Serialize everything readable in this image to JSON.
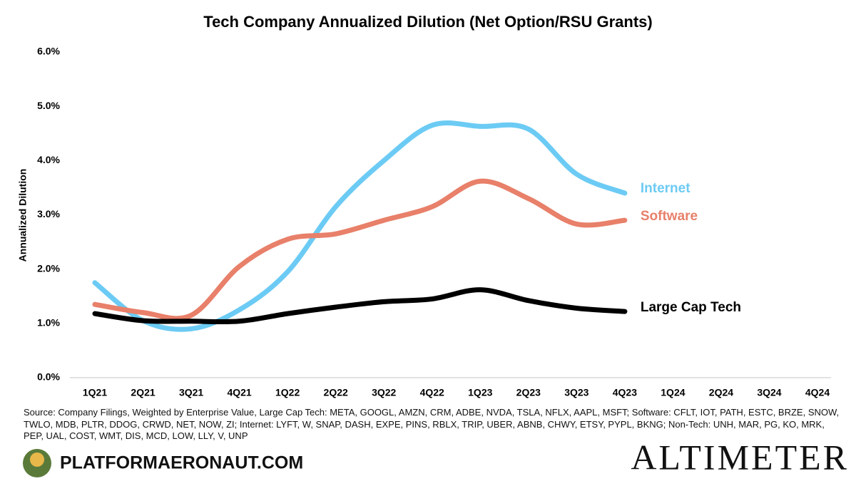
{
  "chart_data": {
    "type": "line",
    "title": "Tech Company Annualized Dilution (Net Option/RSU Grants)",
    "y_label": "Annualized Dilution",
    "categories": [
      "1Q21",
      "2Q21",
      "3Q21",
      "4Q21",
      "1Q22",
      "2Q22",
      "3Q22",
      "4Q22",
      "1Q23",
      "2Q23",
      "3Q23",
      "4Q23",
      "1Q24",
      "2Q24",
      "3Q24",
      "4Q24"
    ],
    "series": [
      {
        "name": "Internet",
        "color": "#6ccbf4",
        "values": [
          1.75,
          1.05,
          0.9,
          1.25,
          1.95,
          3.15,
          4.0,
          4.65,
          4.63,
          4.58,
          3.75,
          3.4,
          null,
          null,
          null,
          null
        ]
      },
      {
        "name": "Software",
        "color": "#e8806a",
        "values": [
          1.35,
          1.2,
          1.15,
          2.05,
          2.55,
          2.65,
          2.9,
          3.15,
          3.62,
          3.3,
          2.83,
          2.9,
          null,
          null,
          null,
          null
        ]
      },
      {
        "name": "Large Cap Tech",
        "color": "#000000",
        "values": [
          1.18,
          1.05,
          1.04,
          1.04,
          1.18,
          1.3,
          1.4,
          1.45,
          1.62,
          1.42,
          1.28,
          1.22,
          null,
          null,
          null,
          null
        ]
      }
    ],
    "ylim": [
      0,
      6
    ],
    "yticks": [
      {
        "value": 0,
        "label": "0.0%"
      },
      {
        "value": 1,
        "label": "1.0%"
      },
      {
        "value": 2,
        "label": "2.0%"
      },
      {
        "value": 3,
        "label": "3.0%"
      },
      {
        "value": 4,
        "label": "4.0%"
      },
      {
        "value": 5,
        "label": "5.0%"
      },
      {
        "value": 6,
        "label": "6.0%"
      }
    ],
    "grid": false,
    "source": "Source: Company Filings, Weighted by Enterprise Value, Large Cap Tech: META, GOOGL, AMZN, CRM, ADBE, NVDA, TSLA, NFLX, AAPL, MSFT; Software: CFLT, IOT, PATH, ESTC, BRZE, SNOW, TWLO, MDB, PLTR, DDOG, CRWD, NET, NOW, ZI; Internet: LYFT, W, SNAP, DASH, EXPE, PINS, RBLX, TRIP, UBER, ABNB, CHWY, ETSY, PYPL, BKNG; Non-Tech: UNH, MAR, PG, KO, MRK, PEP, UAL, COST, WMT, DIS, MCD, LOW, LLY, V, UNP"
  },
  "branding": {
    "site": "PLATFORMAERONAUT.COM",
    "logo": "ALTIMETER"
  }
}
